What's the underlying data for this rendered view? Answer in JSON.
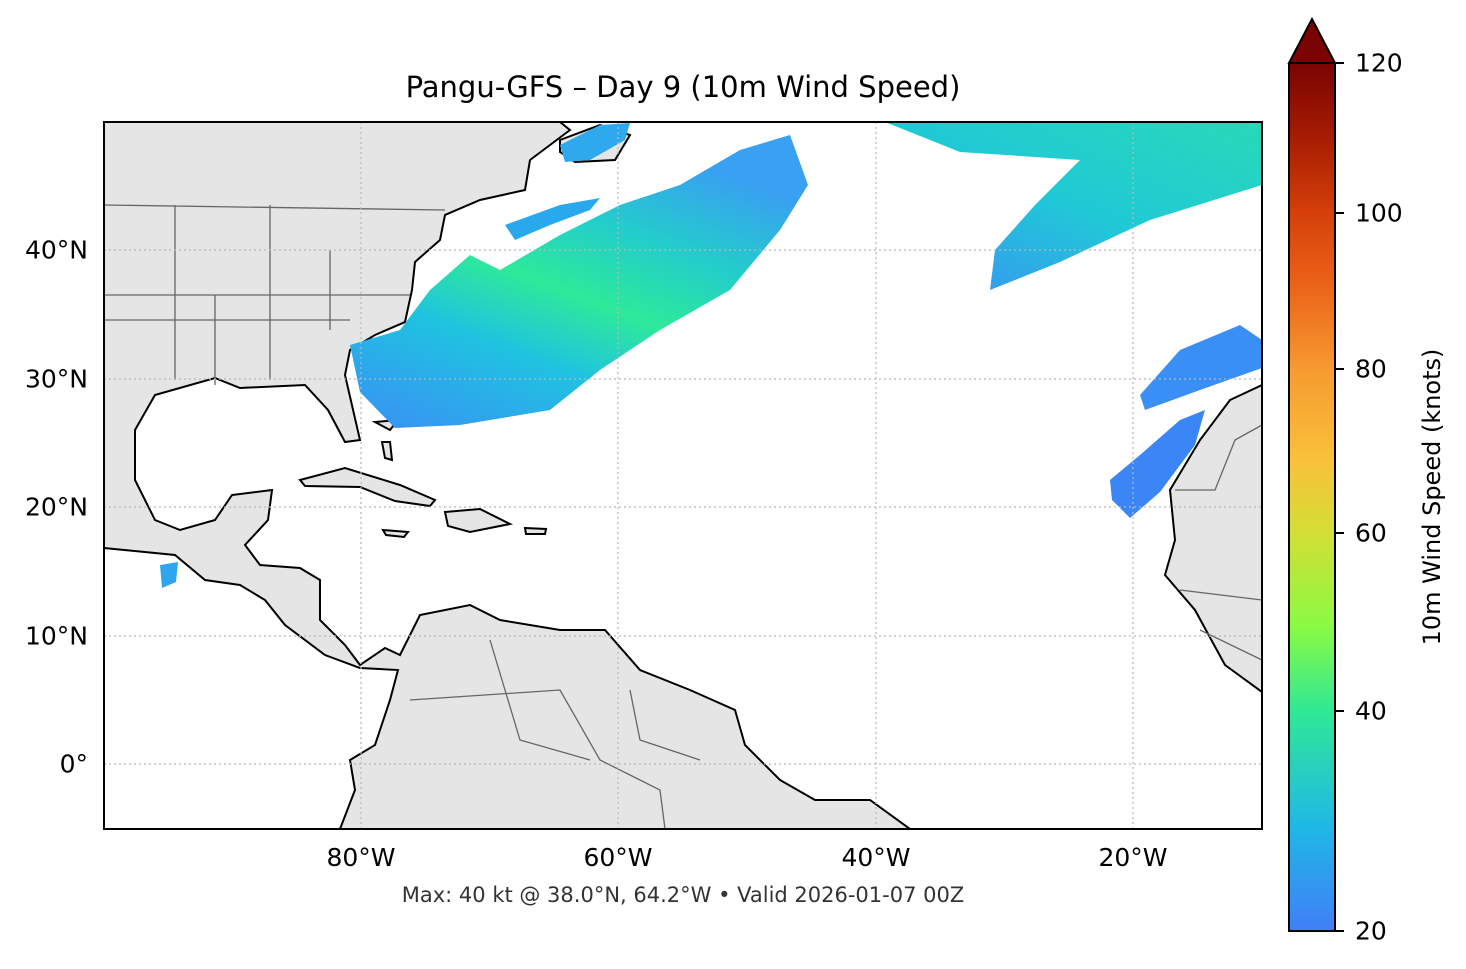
{
  "title": "Pangu-GFS – Day 9 (10m Wind Speed)",
  "footer": "Max: 40 kt @ 38.0°N, 64.2°W • Valid 2026-01-07 00Z",
  "chart_data": {
    "type": "heatmap",
    "title": "Pangu-GFS – Day 9 (10m Wind Speed)",
    "projection": "PlateCarree map",
    "extent": {
      "lon": [
        -100,
        -10
      ],
      "lat": [
        -5,
        50
      ]
    },
    "x_ticks": [
      "80°W",
      "60°W",
      "40°W",
      "20°W"
    ],
    "y_ticks": [
      "40°N",
      "30°N",
      "20°N",
      "10°N",
      "0°"
    ],
    "gridlines": true,
    "colorbar": {
      "label": "10m Wind Speed (knots)",
      "ticks": [
        "20",
        "40",
        "60",
        "80",
        "100",
        "120"
      ],
      "range": [
        20,
        120
      ],
      "extend": "max",
      "colormap": "turbo"
    },
    "max": {
      "value": 40,
      "unit": "kt",
      "lat": 38.0,
      "lon": -64.2
    },
    "valid": "2026-01-07 00Z",
    "features": [
      {
        "name": "wind-swath-western-atlantic",
        "peak_kt": 40
      },
      {
        "name": "wind-swath-north-central-atlantic",
        "peak_kt": 33
      },
      {
        "name": "wind-swath-canaries",
        "peak_kt": 24
      },
      {
        "name": "wind-swath-cape-verde",
        "peak_kt": 22
      }
    ]
  },
  "colors": {
    "land": "#e5e5e5",
    "coast": "#000000",
    "border": "#666666",
    "grid": "#b0b0b0"
  }
}
